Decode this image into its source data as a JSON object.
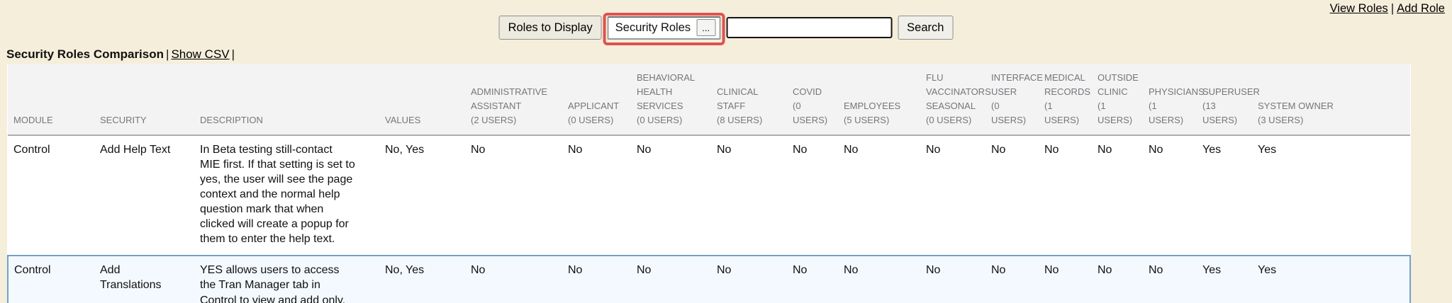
{
  "colors": {
    "page_bg": "#f5eedb",
    "highlight_red": "#df5150",
    "row_hl_border": "#74a0ca",
    "row_hl_bg": "#f3f9fe",
    "header_text": "#75767a",
    "header_bg": "#f3f3f4",
    "link_color": "#000000"
  },
  "top_links": {
    "view_roles": "View Roles",
    "divider": "|",
    "add_role": "Add Role"
  },
  "toolbar": {
    "roles_to_display": "Roles to Display",
    "picker_value": "Security Roles",
    "picker_more": "...",
    "search_value": "",
    "search_label": "Search"
  },
  "title_bar": {
    "title": "Security Roles Comparison",
    "divider1": "|",
    "show_csv": "Show CSV",
    "divider2": "|"
  },
  "table": {
    "static_headers": [
      "MODULE",
      "SECURITY",
      "DESCRIPTION",
      "VALUES"
    ],
    "role_headers": [
      {
        "name": "ADMINISTRATIVE ASSISTANT",
        "users": "(2 USERS)"
      },
      {
        "name": "APPLICANT",
        "users": "(0 USERS)"
      },
      {
        "name": "BEHAVIORAL HEALTH SERVICES",
        "users": "(0 USERS)"
      },
      {
        "name": "CLINICAL STAFF",
        "users": "(8 USERS)"
      },
      {
        "name": "COVID",
        "users": "(0 USERS)"
      },
      {
        "name": "EMPLOYEES",
        "users": "(5 USERS)"
      },
      {
        "name": "FLU VACCINATORS SEASONAL",
        "users": "(0 USERS)"
      },
      {
        "name": "INTERFACE USER",
        "users": "(0 USERS)"
      },
      {
        "name": "MEDICAL RECORDS",
        "users": "(1 USERS)"
      },
      {
        "name": "OUTSIDE CLINIC",
        "users": "(1 USERS)"
      },
      {
        "name": "PHYSICIANS",
        "users": "(1 USERS)"
      },
      {
        "name": "SUPERUSER",
        "users": "(13 USERS)"
      },
      {
        "name": "SYSTEM OWNER",
        "users": "(3 USERS)"
      }
    ],
    "rows": [
      {
        "module": "Control",
        "security": "Add Help Text",
        "description": "In Beta testing still-contact MIE first. If that setting is set to yes, the user will see the page context and the normal help question mark that when clicked will create a popup for them to enter the help text.",
        "values": "No, Yes",
        "role_values": [
          "No",
          "No",
          "No",
          "No",
          "No",
          "No",
          "No",
          "No",
          "No",
          "No",
          "No",
          "Yes",
          "Yes"
        ],
        "highlighted": false
      },
      {
        "module": "Control",
        "security": "Add Translations",
        "description": "YES allows users to access the Tran Manager tab in Control to view and add only.",
        "values": "No, Yes",
        "role_values": [
          "No",
          "No",
          "No",
          "No",
          "No",
          "No",
          "No",
          "No",
          "No",
          "No",
          "No",
          "Yes",
          "Yes"
        ],
        "highlighted": true
      }
    ]
  }
}
